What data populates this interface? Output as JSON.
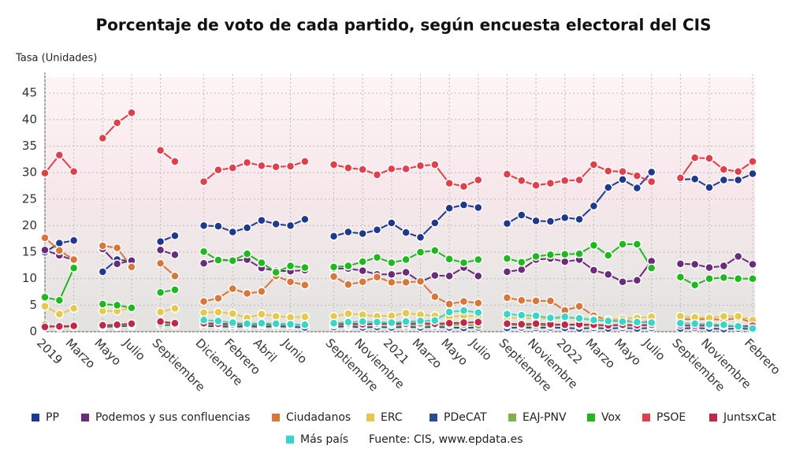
{
  "chart_data": {
    "type": "line",
    "title": "Porcentaje de voto de cada partido, según encuesta electoral del CIS",
    "y_label": "Tasa (Unidades)",
    "source": "Fuente: CIS, www.epdata.es",
    "categories": [
      "2019",
      null,
      "Marzo",
      null,
      "Mayo",
      null,
      "Julio",
      null,
      "Septiembre",
      null,
      null,
      "Diciembre",
      null,
      "Febrero",
      null,
      "Abril",
      null,
      "Junio",
      null,
      null,
      "Septiembre",
      null,
      "Noviembre",
      null,
      "2021",
      null,
      "Marzo",
      null,
      "Mayo",
      null,
      "Julio",
      null,
      "Septiembre",
      null,
      "Noviembre",
      null,
      "2022",
      null,
      "Marzo",
      null,
      "Mayo",
      null,
      "Julio",
      null,
      "Septiembre",
      null,
      "Noviembre",
      null,
      null,
      "Febrero"
    ],
    "ylim": [
      0,
      48
    ],
    "yticks": [
      0,
      5,
      10,
      15,
      20,
      25,
      30,
      35,
      40,
      45
    ],
    "grid": true,
    "legend": "bottom",
    "series": [
      {
        "name": "PP",
        "color": "#1f3a8c",
        "values": [
          15.0,
          16.7,
          17.2,
          null,
          11.3,
          13.6,
          13.3,
          null,
          17.0,
          18.1,
          null,
          20.0,
          19.9,
          18.8,
          19.6,
          21.0,
          20.3,
          20.0,
          21.2,
          null,
          18.0,
          18.8,
          18.5,
          19.2,
          20.5,
          18.7,
          17.8,
          20.5,
          23.3,
          23.9,
          23.4,
          null,
          20.4,
          22.0,
          20.9,
          20.8,
          21.5,
          21.2,
          23.7,
          27.2,
          28.7,
          27.1,
          30.1,
          null,
          28.7,
          28.8,
          27.2,
          28.6,
          28.6,
          29.8
        ]
      },
      {
        "name": "Podemos y sus confluencias",
        "color": "#6b2c7a",
        "values": [
          15.4,
          14.4,
          13.5,
          null,
          15.6,
          12.8,
          13.4,
          null,
          15.4,
          14.5,
          null,
          12.9,
          13.6,
          13.4,
          13.6,
          12.0,
          11.5,
          11.4,
          11.6,
          null,
          11.9,
          11.9,
          11.5,
          10.8,
          10.8,
          11.2,
          9.4,
          10.6,
          10.5,
          12.1,
          10.5,
          null,
          11.3,
          11.7,
          13.6,
          13.8,
          13.2,
          13.6,
          11.6,
          10.8,
          9.4,
          9.7,
          13.3,
          null,
          12.8,
          12.7,
          12.1,
          12.4,
          14.2,
          12.7
        ]
      },
      {
        "name": "Ciudadanos",
        "color": "#d9773a",
        "values": [
          17.7,
          15.3,
          13.6,
          null,
          16.2,
          15.8,
          12.2,
          null,
          12.9,
          10.5,
          null,
          5.7,
          6.3,
          8.1,
          7.2,
          7.6,
          10.5,
          9.4,
          8.8,
          null,
          10.4,
          8.9,
          9.4,
          10.3,
          9.3,
          9.3,
          9.5,
          6.6,
          5.2,
          5.7,
          5.4,
          null,
          6.4,
          5.9,
          5.8,
          5.8,
          4.0,
          4.8,
          3.0,
          2.2,
          2.3,
          1.6,
          2.1,
          null,
          2.4,
          2.3,
          2.4,
          2.2,
          2.6,
          1.7
        ]
      },
      {
        "name": "ERC",
        "color": "#e6c84a",
        "values": [
          4.8,
          3.3,
          4.4,
          null,
          3.9,
          3.9,
          4.5,
          null,
          3.7,
          4.4,
          null,
          3.6,
          3.7,
          3.4,
          2.6,
          3.3,
          2.9,
          2.7,
          2.8,
          null,
          2.9,
          3.4,
          3.2,
          2.9,
          3.0,
          3.5,
          3.2,
          3.0,
          2.8,
          3.0,
          2.9,
          null,
          2.7,
          2.5,
          2.6,
          2.4,
          2.6,
          2.5,
          2.4,
          2.3,
          2.4,
          2.6,
          2.8,
          null,
          2.9,
          2.7,
          2.6,
          2.9,
          2.9,
          2.2
        ]
      },
      {
        "name": "PDeCAT",
        "color": "#2d4a9a",
        "values": [
          1.1,
          0.9,
          1.0,
          null,
          0.9,
          1.0,
          1.1,
          null,
          1.2,
          1.3,
          null,
          1.1,
          1.0,
          0.9,
          1.0,
          0.9,
          1.0,
          0.9,
          0.8,
          null,
          0.9,
          1.0,
          0.8,
          0.9,
          0.8,
          0.9,
          0.8,
          0.9,
          0.8,
          0.7,
          0.8,
          null,
          0.7,
          0.8,
          0.7,
          0.8,
          0.7,
          0.6,
          0.7,
          0.6,
          0.7,
          0.6,
          0.7,
          null,
          0.6,
          0.7,
          0.6,
          0.5,
          0.6,
          0.5
        ]
      },
      {
        "name": "EAJ-PNV",
        "color": "#7fb24a",
        "values": [
          1.3,
          0.8,
          1.0,
          null,
          1.1,
          1.2,
          1.3,
          null,
          1.5,
          1.3,
          null,
          1.4,
          1.3,
          1.2,
          1.3,
          1.2,
          1.3,
          1.2,
          1.3,
          null,
          1.3,
          1.2,
          1.3,
          1.4,
          1.3,
          1.2,
          1.3,
          1.2,
          1.3,
          1.3,
          1.2,
          null,
          1.3,
          1.2,
          1.1,
          1.2,
          1.3,
          1.2,
          1.1,
          1.2,
          1.1,
          1.2,
          1.1,
          null,
          1.2,
          1.1,
          1.2,
          1.1,
          1.0,
          1.1
        ]
      },
      {
        "name": "Vox",
        "color": "#1fb81f",
        "values": [
          6.5,
          5.9,
          12.0,
          null,
          5.2,
          5.0,
          4.5,
          null,
          7.4,
          7.9,
          null,
          15.1,
          13.5,
          13.4,
          14.7,
          13.0,
          11.2,
          12.4,
          12.1,
          null,
          12.2,
          12.4,
          13.2,
          14.0,
          13.0,
          13.6,
          15.0,
          15.3,
          13.7,
          13.0,
          13.6,
          null,
          13.8,
          13.1,
          14.2,
          14.5,
          14.6,
          14.7,
          16.3,
          14.4,
          16.5,
          16.5,
          12.0,
          null,
          10.3,
          8.8,
          10.0,
          10.2,
          10.0,
          10.0
        ]
      },
      {
        "name": "PSOE",
        "color": "#e0404a",
        "values": [
          29.9,
          33.3,
          30.2,
          null,
          36.5,
          39.4,
          41.3,
          null,
          34.2,
          32.1,
          null,
          28.3,
          30.5,
          30.9,
          31.9,
          31.3,
          31.1,
          31.2,
          32.1,
          null,
          31.5,
          30.9,
          30.6,
          29.6,
          30.7,
          30.7,
          31.3,
          31.5,
          28.0,
          27.4,
          28.6,
          null,
          29.7,
          28.5,
          27.6,
          28.0,
          28.5,
          28.6,
          31.5,
          30.3,
          30.2,
          29.4,
          28.3,
          null,
          29.0,
          32.8,
          32.7,
          30.6,
          30.2,
          32.1
        ]
      },
      {
        "name": "JuntsxCat",
        "color": "#c0284a",
        "values": [
          0.9,
          1.0,
          1.1,
          null,
          1.2,
          1.3,
          1.5,
          null,
          1.9,
          1.6,
          null,
          1.6,
          1.5,
          1.4,
          1.5,
          1.4,
          1.5,
          1.4,
          1.3,
          null,
          1.4,
          1.5,
          1.4,
          1.5,
          1.6,
          1.5,
          1.6,
          1.5,
          1.6,
          1.7,
          1.8,
          null,
          1.5,
          1.4,
          1.5,
          1.4,
          1.3,
          1.4,
          1.3,
          1.2,
          1.3,
          1.2,
          1.3,
          null,
          1.2,
          1.1,
          1.2,
          1.1,
          1.0,
          1.1
        ]
      },
      {
        "name": "Más país",
        "color": "#38d6c8",
        "values": [
          null,
          null,
          null,
          null,
          null,
          null,
          null,
          null,
          null,
          null,
          null,
          2.2,
          2.0,
          1.7,
          1.5,
          1.6,
          1.5,
          1.4,
          1.3,
          null,
          1.6,
          1.8,
          1.9,
          1.8,
          1.7,
          1.9,
          2.0,
          2.1,
          3.7,
          4.0,
          3.6,
          null,
          3.3,
          3.1,
          3.0,
          2.6,
          2.8,
          2.5,
          2.2,
          2.0,
          1.9,
          1.8,
          1.7,
          null,
          1.6,
          1.5,
          1.4,
          1.3,
          1.0,
          0.6
        ]
      }
    ]
  }
}
